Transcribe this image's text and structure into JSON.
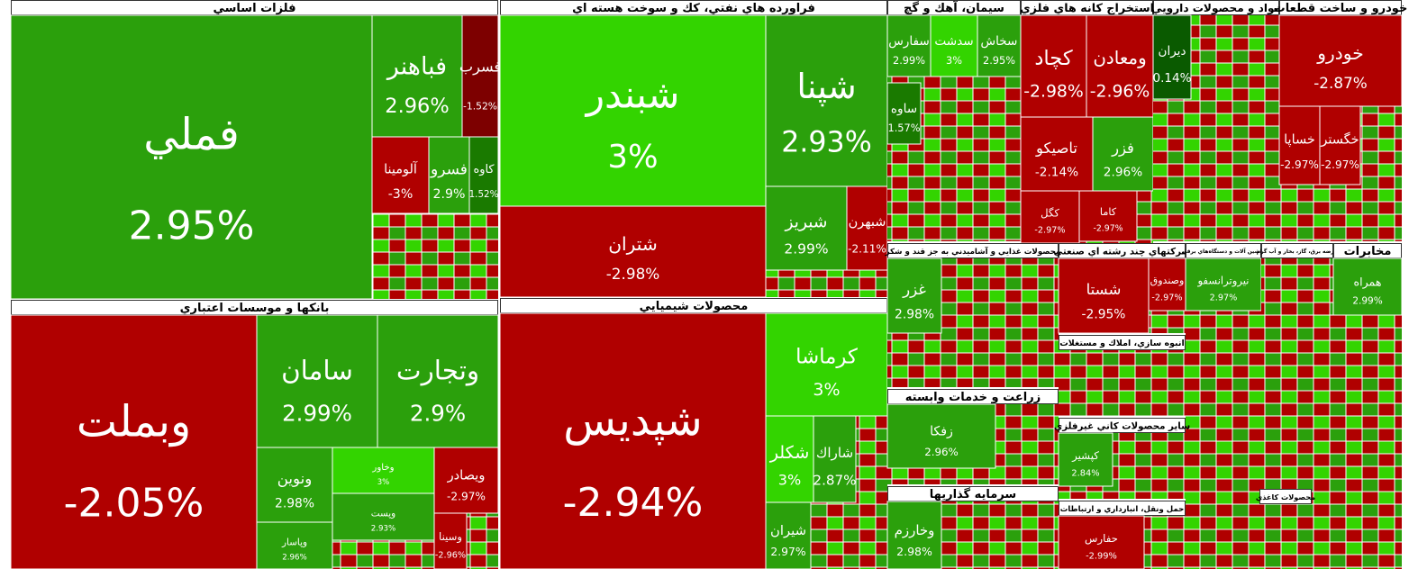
{
  "sectors": [
    {
      "title": "فلزات اساسي",
      "tiles": [
        {
          "name": "فملي",
          "value": 2.95,
          "value_label": "2.95%",
          "color": "#2ba00c"
        },
        {
          "name": "فباهنر",
          "value": 2.96,
          "value_label": "2.96%",
          "color": "#2ba00c"
        },
        {
          "name": "فسرب",
          "value": -1.52,
          "value_label": "-1.52%",
          "color": "#7d0000"
        },
        {
          "name": "آلومينا",
          "value": -3,
          "value_label": "-3%",
          "color": "#b00000"
        },
        {
          "name": "فسرو",
          "value": 2.9,
          "value_label": "2.9%",
          "color": "#2ba00c"
        },
        {
          "name": "كاوه",
          "value": 1.52,
          "value_label": "1.52%",
          "color": "#1a7a00"
        }
      ]
    },
    {
      "title": "بانکها و موسسات اعتباري",
      "tiles": [
        {
          "name": "وبملت",
          "value": -2.05,
          "value_label": "-2.05%",
          "color": "#b00000"
        },
        {
          "name": "سامان",
          "value": 2.99,
          "value_label": "2.99%",
          "color": "#2ba00c"
        },
        {
          "name": "وتجارت",
          "value": 2.9,
          "value_label": "2.9%",
          "color": "#2ba00c"
        },
        {
          "name": "ونوين",
          "value": 2.98,
          "value_label": "2.98%",
          "color": "#2ba00c"
        },
        {
          "name": "وپاسار",
          "value": 2.96,
          "value_label": "2.96%",
          "color": "#2ba00c"
        },
        {
          "name": "وخاور",
          "value": 3,
          "value_label": "3%",
          "color": "#33d400"
        },
        {
          "name": "ويصادر",
          "value": -2.97,
          "value_label": "-2.97%",
          "color": "#b00000"
        },
        {
          "name": "وپست",
          "value": 2.93,
          "value_label": "2.93%",
          "color": "#2ba00c"
        },
        {
          "name": "وسينا",
          "value": -2.96,
          "value_label": "-2.96%",
          "color": "#b00000"
        }
      ]
    },
    {
      "title": "فراورده هاي نفتي، كك و سوخت هسته اي",
      "tiles": [
        {
          "name": "شبندر",
          "value": 3,
          "value_label": "3%",
          "color": "#33d400"
        },
        {
          "name": "شتران",
          "value": -2.98,
          "value_label": "-2.98%",
          "color": "#b00000"
        },
        {
          "name": "شپنا",
          "value": 2.93,
          "value_label": "2.93%",
          "color": "#2ba00c"
        },
        {
          "name": "شبريز",
          "value": 2.99,
          "value_label": "2.99%",
          "color": "#2ba00c"
        },
        {
          "name": "شبهرن",
          "value": -2.11,
          "value_label": "-2.11%",
          "color": "#b00000"
        }
      ]
    },
    {
      "title": "محصولات شيميايي",
      "tiles": [
        {
          "name": "شپديس",
          "value": -2.94,
          "value_label": "-2.94%",
          "color": "#b00000"
        },
        {
          "name": "كرماشا",
          "value": 3,
          "value_label": "3%",
          "color": "#33d400"
        },
        {
          "name": "شكلر",
          "value": 3,
          "value_label": "3%",
          "color": "#33d400"
        },
        {
          "name": "شاراك",
          "value": 2.87,
          "value_label": "2.87%",
          "color": "#2ba00c"
        },
        {
          "name": "شيران",
          "value": 2.97,
          "value_label": "2.97%",
          "color": "#2ba00c"
        }
      ]
    },
    {
      "title": "سيمان، آهك و گچ",
      "tiles": [
        {
          "name": "سفارس",
          "value": 2.99,
          "value_label": "2.99%",
          "color": "#2ba00c"
        },
        {
          "name": "سدشت",
          "value": 3,
          "value_label": "3%",
          "color": "#33d400"
        },
        {
          "name": "سخاش",
          "value": 2.95,
          "value_label": "2.95%",
          "color": "#2ba00c"
        },
        {
          "name": "ساوه",
          "value": 1.57,
          "value_label": "1.57%",
          "color": "#1a7a00"
        }
      ]
    },
    {
      "title": "استخراج كانه هاي فلزي",
      "tiles": [
        {
          "name": "كچاد",
          "value": -2.98,
          "value_label": "-2.98%",
          "color": "#b00000"
        },
        {
          "name": "ومعادن",
          "value": -2.96,
          "value_label": "-2.96%",
          "color": "#b00000"
        },
        {
          "name": "تاصيكو",
          "value": -2.14,
          "value_label": "-2.14%",
          "color": "#b00000"
        },
        {
          "name": "فزر",
          "value": 2.96,
          "value_label": "2.96%",
          "color": "#2ba00c"
        },
        {
          "name": "كگل",
          "value": -2.97,
          "value_label": "-2.97%",
          "color": "#b00000"
        },
        {
          "name": "كاما",
          "value": -2.97,
          "value_label": "-2.97%",
          "color": "#b00000"
        }
      ]
    },
    {
      "title": "مواد و محصولات دارويي",
      "tiles": [
        {
          "name": "ديران",
          "value": 0.14,
          "value_label": "0.14%",
          "color": "#0a5a00"
        }
      ]
    },
    {
      "title": "خودرو و ساخت قطعات",
      "tiles": [
        {
          "name": "خودرو",
          "value": -2.87,
          "value_label": "-2.87%",
          "color": "#b00000"
        },
        {
          "name": "خساپا",
          "value": -2.97,
          "value_label": "-2.97%",
          "color": "#b00000"
        },
        {
          "name": "خگستر",
          "value": -2.97,
          "value_label": "-2.97%",
          "color": "#b00000"
        }
      ]
    },
    {
      "title": "محصولات غذايي و آشاميدني به جز قند و شكر",
      "tiles": [
        {
          "name": "غزر",
          "value": 2.98,
          "value_label": "2.98%",
          "color": "#2ba00c"
        }
      ]
    },
    {
      "title": "زراعت و خدمات وابسته",
      "tiles": [
        {
          "name": "زفكا",
          "value": 2.96,
          "value_label": "2.96%",
          "color": "#2ba00c"
        }
      ]
    },
    {
      "title": "سرمايه گذاريها",
      "tiles": [
        {
          "name": "وخارزم",
          "value": 2.98,
          "value_label": "2.98%",
          "color": "#2ba00c"
        }
      ]
    },
    {
      "title": "شرکتهاي چند رشته اي صنعتي",
      "tiles": [
        {
          "name": "شستا",
          "value": -2.95,
          "value_label": "-2.95%",
          "color": "#b00000"
        },
        {
          "name": "وصندوق",
          "value": -2.97,
          "value_label": "-2.97%",
          "color": "#b00000"
        }
      ]
    },
    {
      "title": "انبوه سازي، املاك و مستغلات",
      "tiles": []
    },
    {
      "title": "ساير محصولات كاني غيرفلزي",
      "tiles": [
        {
          "name": "كپشير",
          "value": 2.84,
          "value_label": "2.84%",
          "color": "#2ba00c"
        }
      ]
    },
    {
      "title": "حمل ونقل، انبارداري و ارتباطات",
      "tiles": [
        {
          "name": "حفارس",
          "value": -2.99,
          "value_label": "-2.99%",
          "color": "#b00000"
        }
      ]
    },
    {
      "title": "ماشين آلات و دستگاه‌هاي برقي",
      "tiles": [
        {
          "name": "نيروترانسفو",
          "value": 2.97,
          "value_label": "2.97%",
          "color": "#2ba00c"
        }
      ]
    },
    {
      "title": "عرضه برق، گاز، بخار و آب گرم",
      "tiles": []
    },
    {
      "title": "مخابرات",
      "tiles": [
        {
          "name": "همراه",
          "value": 2.99,
          "value_label": "2.99%",
          "color": "#2ba00c"
        }
      ]
    },
    {
      "title": "محصولات كاغذي",
      "tiles": []
    }
  ]
}
